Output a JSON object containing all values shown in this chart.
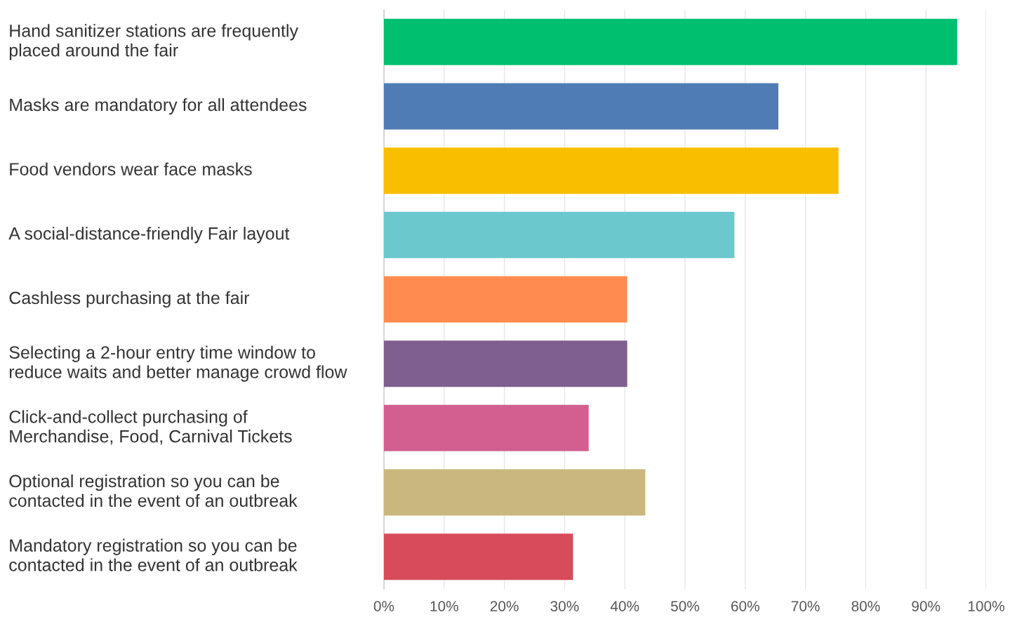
{
  "chart_data": {
    "type": "bar",
    "orientation": "horizontal",
    "categories": [
      "Hand sanitizer stations are frequently\nplaced around the fair",
      "Masks are mandatory for all attendees",
      "Food vendors wear face masks",
      "A social-distance-friendly Fair layout",
      "Cashless purchasing at the fair",
      "Selecting a 2-hour entry time window to\nreduce waits and better manage crowd flow",
      "Click-and-collect purchasing of\nMerchandise, Food, Carnival Tickets",
      "Optional registration so you can be\ncontacted in the event of an outbreak",
      "Mandatory registration so you can be\ncontacted in the event of an outbreak"
    ],
    "values": [
      95.2,
      65.5,
      75.5,
      58.2,
      40.4,
      40.4,
      34.0,
      43.4,
      31.4
    ],
    "colors": [
      "#00bf6f",
      "#507cb6",
      "#f9be00",
      "#6bc8cd",
      "#ff8b4f",
      "#7f5f8f",
      "#d25f90",
      "#c9b77d",
      "#d84b5b"
    ],
    "xlim": [
      0,
      100
    ],
    "xticks": [
      {
        "value": 0,
        "label": "0%"
      },
      {
        "value": 10,
        "label": "10%"
      },
      {
        "value": 20,
        "label": "20%"
      },
      {
        "value": 30,
        "label": "30%"
      },
      {
        "value": 40,
        "label": "40%"
      },
      {
        "value": 50,
        "label": "50%"
      },
      {
        "value": 60,
        "label": "60%"
      },
      {
        "value": 70,
        "label": "70%"
      },
      {
        "value": 80,
        "label": "80%"
      },
      {
        "value": 90,
        "label": "90%"
      },
      {
        "value": 100,
        "label": "100%"
      }
    ],
    "grid": "x"
  }
}
